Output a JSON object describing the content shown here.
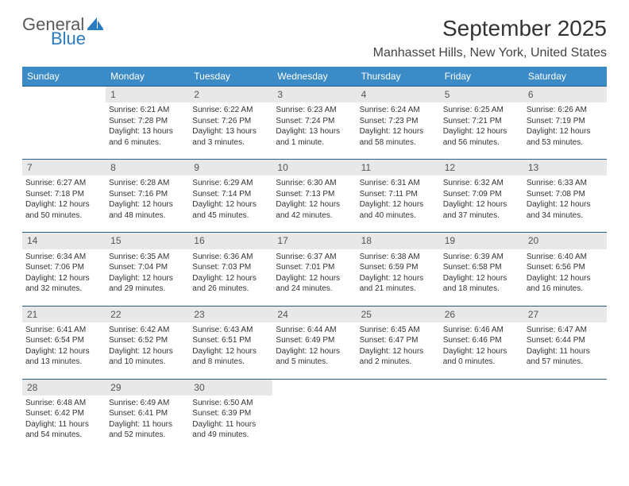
{
  "logo": {
    "part1": "General",
    "part2": "Blue"
  },
  "title": "September 2025",
  "location": "Manhasset Hills, New York, United States",
  "colors": {
    "header_bg": "#3b8bc7",
    "header_text": "#ffffff",
    "daynum_bg": "#e8e8e8",
    "border": "#2b5d84",
    "text": "#333333",
    "logo_gray": "#5a5a5a",
    "logo_blue": "#2b7bbf"
  },
  "weekdays": [
    "Sunday",
    "Monday",
    "Tuesday",
    "Wednesday",
    "Thursday",
    "Friday",
    "Saturday"
  ],
  "weeks": [
    {
      "nums": [
        "",
        "1",
        "2",
        "3",
        "4",
        "5",
        "6"
      ],
      "cells": [
        {
          "lines": []
        },
        {
          "lines": [
            "Sunrise: 6:21 AM",
            "Sunset: 7:28 PM",
            "Daylight: 13 hours",
            "and 6 minutes."
          ]
        },
        {
          "lines": [
            "Sunrise: 6:22 AM",
            "Sunset: 7:26 PM",
            "Daylight: 13 hours",
            "and 3 minutes."
          ]
        },
        {
          "lines": [
            "Sunrise: 6:23 AM",
            "Sunset: 7:24 PM",
            "Daylight: 13 hours",
            "and 1 minute."
          ]
        },
        {
          "lines": [
            "Sunrise: 6:24 AM",
            "Sunset: 7:23 PM",
            "Daylight: 12 hours",
            "and 58 minutes."
          ]
        },
        {
          "lines": [
            "Sunrise: 6:25 AM",
            "Sunset: 7:21 PM",
            "Daylight: 12 hours",
            "and 56 minutes."
          ]
        },
        {
          "lines": [
            "Sunrise: 6:26 AM",
            "Sunset: 7:19 PM",
            "Daylight: 12 hours",
            "and 53 minutes."
          ]
        }
      ]
    },
    {
      "nums": [
        "7",
        "8",
        "9",
        "10",
        "11",
        "12",
        "13"
      ],
      "cells": [
        {
          "lines": [
            "Sunrise: 6:27 AM",
            "Sunset: 7:18 PM",
            "Daylight: 12 hours",
            "and 50 minutes."
          ]
        },
        {
          "lines": [
            "Sunrise: 6:28 AM",
            "Sunset: 7:16 PM",
            "Daylight: 12 hours",
            "and 48 minutes."
          ]
        },
        {
          "lines": [
            "Sunrise: 6:29 AM",
            "Sunset: 7:14 PM",
            "Daylight: 12 hours",
            "and 45 minutes."
          ]
        },
        {
          "lines": [
            "Sunrise: 6:30 AM",
            "Sunset: 7:13 PM",
            "Daylight: 12 hours",
            "and 42 minutes."
          ]
        },
        {
          "lines": [
            "Sunrise: 6:31 AM",
            "Sunset: 7:11 PM",
            "Daylight: 12 hours",
            "and 40 minutes."
          ]
        },
        {
          "lines": [
            "Sunrise: 6:32 AM",
            "Sunset: 7:09 PM",
            "Daylight: 12 hours",
            "and 37 minutes."
          ]
        },
        {
          "lines": [
            "Sunrise: 6:33 AM",
            "Sunset: 7:08 PM",
            "Daylight: 12 hours",
            "and 34 minutes."
          ]
        }
      ]
    },
    {
      "nums": [
        "14",
        "15",
        "16",
        "17",
        "18",
        "19",
        "20"
      ],
      "cells": [
        {
          "lines": [
            "Sunrise: 6:34 AM",
            "Sunset: 7:06 PM",
            "Daylight: 12 hours",
            "and 32 minutes."
          ]
        },
        {
          "lines": [
            "Sunrise: 6:35 AM",
            "Sunset: 7:04 PM",
            "Daylight: 12 hours",
            "and 29 minutes."
          ]
        },
        {
          "lines": [
            "Sunrise: 6:36 AM",
            "Sunset: 7:03 PM",
            "Daylight: 12 hours",
            "and 26 minutes."
          ]
        },
        {
          "lines": [
            "Sunrise: 6:37 AM",
            "Sunset: 7:01 PM",
            "Daylight: 12 hours",
            "and 24 minutes."
          ]
        },
        {
          "lines": [
            "Sunrise: 6:38 AM",
            "Sunset: 6:59 PM",
            "Daylight: 12 hours",
            "and 21 minutes."
          ]
        },
        {
          "lines": [
            "Sunrise: 6:39 AM",
            "Sunset: 6:58 PM",
            "Daylight: 12 hours",
            "and 18 minutes."
          ]
        },
        {
          "lines": [
            "Sunrise: 6:40 AM",
            "Sunset: 6:56 PM",
            "Daylight: 12 hours",
            "and 16 minutes."
          ]
        }
      ]
    },
    {
      "nums": [
        "21",
        "22",
        "23",
        "24",
        "25",
        "26",
        "27"
      ],
      "cells": [
        {
          "lines": [
            "Sunrise: 6:41 AM",
            "Sunset: 6:54 PM",
            "Daylight: 12 hours",
            "and 13 minutes."
          ]
        },
        {
          "lines": [
            "Sunrise: 6:42 AM",
            "Sunset: 6:52 PM",
            "Daylight: 12 hours",
            "and 10 minutes."
          ]
        },
        {
          "lines": [
            "Sunrise: 6:43 AM",
            "Sunset: 6:51 PM",
            "Daylight: 12 hours",
            "and 8 minutes."
          ]
        },
        {
          "lines": [
            "Sunrise: 6:44 AM",
            "Sunset: 6:49 PM",
            "Daylight: 12 hours",
            "and 5 minutes."
          ]
        },
        {
          "lines": [
            "Sunrise: 6:45 AM",
            "Sunset: 6:47 PM",
            "Daylight: 12 hours",
            "and 2 minutes."
          ]
        },
        {
          "lines": [
            "Sunrise: 6:46 AM",
            "Sunset: 6:46 PM",
            "Daylight: 12 hours",
            "and 0 minutes."
          ]
        },
        {
          "lines": [
            "Sunrise: 6:47 AM",
            "Sunset: 6:44 PM",
            "Daylight: 11 hours",
            "and 57 minutes."
          ]
        }
      ]
    },
    {
      "nums": [
        "28",
        "29",
        "30",
        "",
        "",
        "",
        ""
      ],
      "cells": [
        {
          "lines": [
            "Sunrise: 6:48 AM",
            "Sunset: 6:42 PM",
            "Daylight: 11 hours",
            "and 54 minutes."
          ]
        },
        {
          "lines": [
            "Sunrise: 6:49 AM",
            "Sunset: 6:41 PM",
            "Daylight: 11 hours",
            "and 52 minutes."
          ]
        },
        {
          "lines": [
            "Sunrise: 6:50 AM",
            "Sunset: 6:39 PM",
            "Daylight: 11 hours",
            "and 49 minutes."
          ]
        },
        {
          "lines": []
        },
        {
          "lines": []
        },
        {
          "lines": []
        },
        {
          "lines": []
        }
      ]
    }
  ]
}
